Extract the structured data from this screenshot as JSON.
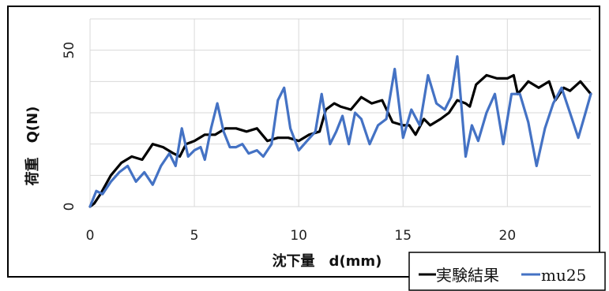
{
  "chart_data": {
    "type": "line",
    "xlabel": "沈下量　d(mm)",
    "ylabel": "荷重　Q(N)",
    "xlim": [
      0,
      24
    ],
    "ylim": [
      0,
      60
    ],
    "x_ticks": [
      0,
      5,
      10,
      15,
      20
    ],
    "y_ticks": [
      0,
      50
    ],
    "y_grid_step": 10,
    "x_grid_step": 5,
    "grid": true,
    "legend_position": "bottom-right",
    "series": [
      {
        "name": "実験結果",
        "color": "#000000",
        "points": [
          [
            0,
            0
          ],
          [
            0.2,
            1
          ],
          [
            0.5,
            4
          ],
          [
            1,
            10
          ],
          [
            1.5,
            14
          ],
          [
            2,
            16
          ],
          [
            2.5,
            15
          ],
          [
            3,
            20
          ],
          [
            3.5,
            19
          ],
          [
            4,
            17
          ],
          [
            4.3,
            16
          ],
          [
            4.6,
            20
          ],
          [
            5,
            21
          ],
          [
            5.5,
            23
          ],
          [
            6,
            23
          ],
          [
            6.5,
            25
          ],
          [
            7,
            25
          ],
          [
            7.5,
            24
          ],
          [
            8,
            25
          ],
          [
            8.5,
            21
          ],
          [
            9,
            22
          ],
          [
            9.5,
            22
          ],
          [
            10,
            21
          ],
          [
            10.5,
            23
          ],
          [
            11,
            24
          ],
          [
            11.3,
            31
          ],
          [
            11.7,
            33
          ],
          [
            12,
            32
          ],
          [
            12.5,
            31
          ],
          [
            13,
            35
          ],
          [
            13.5,
            33
          ],
          [
            14,
            34
          ],
          [
            14.5,
            27
          ],
          [
            15,
            26
          ],
          [
            15.3,
            26
          ],
          [
            15.6,
            23
          ],
          [
            16,
            28
          ],
          [
            16.3,
            26
          ],
          [
            16.8,
            28
          ],
          [
            17.2,
            30
          ],
          [
            17.6,
            34
          ],
          [
            18,
            33
          ],
          [
            18.2,
            32
          ],
          [
            18.5,
            39
          ],
          [
            19,
            42
          ],
          [
            19.5,
            41
          ],
          [
            20,
            41
          ],
          [
            20.3,
            42
          ],
          [
            20.5,
            36
          ],
          [
            21,
            40
          ],
          [
            21.5,
            38
          ],
          [
            22,
            40
          ],
          [
            22.3,
            34
          ],
          [
            22.7,
            38
          ],
          [
            23,
            37
          ],
          [
            23.5,
            40
          ],
          [
            24,
            36
          ]
        ]
      },
      {
        "name": "mu25",
        "color": "#4472C4",
        "points": [
          [
            0,
            0
          ],
          [
            0.3,
            5
          ],
          [
            0.6,
            4
          ],
          [
            1,
            8
          ],
          [
            1.4,
            11
          ],
          [
            1.8,
            13
          ],
          [
            2.2,
            8
          ],
          [
            2.6,
            11
          ],
          [
            3,
            7
          ],
          [
            3.4,
            13
          ],
          [
            3.8,
            17
          ],
          [
            4.1,
            13
          ],
          [
            4.4,
            25
          ],
          [
            4.7,
            16
          ],
          [
            5,
            18
          ],
          [
            5.3,
            19
          ],
          [
            5.5,
            15
          ],
          [
            5.8,
            25
          ],
          [
            6.1,
            33
          ],
          [
            6.4,
            24
          ],
          [
            6.7,
            19
          ],
          [
            7,
            19
          ],
          [
            7.3,
            20
          ],
          [
            7.6,
            17
          ],
          [
            8,
            18
          ],
          [
            8.3,
            16
          ],
          [
            8.7,
            20
          ],
          [
            9,
            34
          ],
          [
            9.3,
            38
          ],
          [
            9.6,
            25
          ],
          [
            10,
            18
          ],
          [
            10.4,
            21
          ],
          [
            10.8,
            24
          ],
          [
            11.1,
            36
          ],
          [
            11.5,
            20
          ],
          [
            11.8,
            24
          ],
          [
            12.1,
            29
          ],
          [
            12.4,
            20
          ],
          [
            12.7,
            30
          ],
          [
            13,
            28
          ],
          [
            13.4,
            20
          ],
          [
            13.8,
            26
          ],
          [
            14.2,
            28
          ],
          [
            14.6,
            44
          ],
          [
            15,
            22
          ],
          [
            15.4,
            31
          ],
          [
            15.8,
            26
          ],
          [
            16.2,
            42
          ],
          [
            16.6,
            33
          ],
          [
            17,
            31
          ],
          [
            17.3,
            35
          ],
          [
            17.6,
            48
          ],
          [
            18,
            16
          ],
          [
            18.3,
            26
          ],
          [
            18.6,
            21
          ],
          [
            19,
            30
          ],
          [
            19.4,
            36
          ],
          [
            19.8,
            20
          ],
          [
            20.2,
            36
          ],
          [
            20.6,
            36
          ],
          [
            21,
            27
          ],
          [
            21.4,
            13
          ],
          [
            21.8,
            25
          ],
          [
            22.2,
            33
          ],
          [
            22.6,
            38
          ],
          [
            23,
            30
          ],
          [
            23.4,
            22
          ],
          [
            23.7,
            29
          ],
          [
            24,
            36
          ]
        ]
      }
    ]
  }
}
